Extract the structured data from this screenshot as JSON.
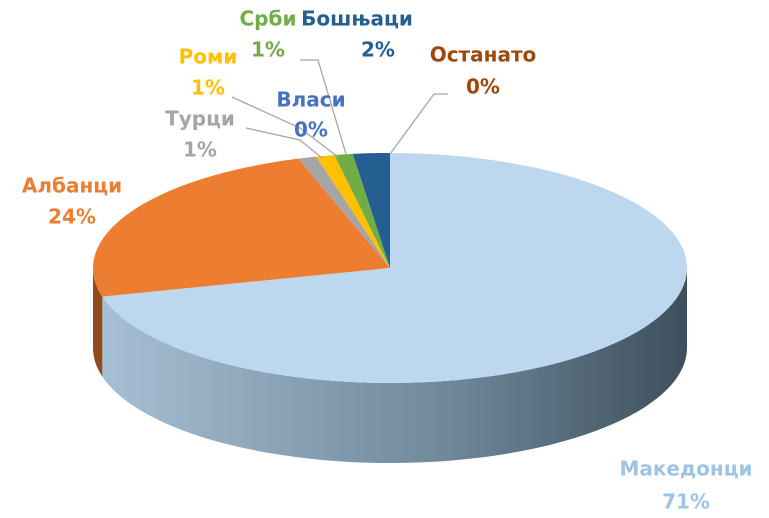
{
  "chart_data": {
    "type": "pie3d",
    "categories": [
      "Македонци",
      "Албанци",
      "Турци",
      "Роми",
      "Власи",
      "Срби",
      "Бошњаци",
      "Останато"
    ],
    "values": [
      71,
      24,
      1,
      1,
      0,
      1,
      2,
      0
    ],
    "value_labels": [
      "71%",
      "24%",
      "1%",
      "1%",
      "0%",
      "1%",
      "2%",
      "0%"
    ],
    "colors": [
      "#bdd7ee",
      "#ed7d31",
      "#a5a5a5",
      "#ffc000",
      "#4472c4",
      "#70ad47",
      "#255e91",
      "#9e480e"
    ],
    "label_colors": [
      "#9dc3e6",
      "#ed7d31",
      "#a5a5a5",
      "#ffc000",
      "#4472c4",
      "#70ad47",
      "#255e91",
      "#9e480e"
    ]
  }
}
